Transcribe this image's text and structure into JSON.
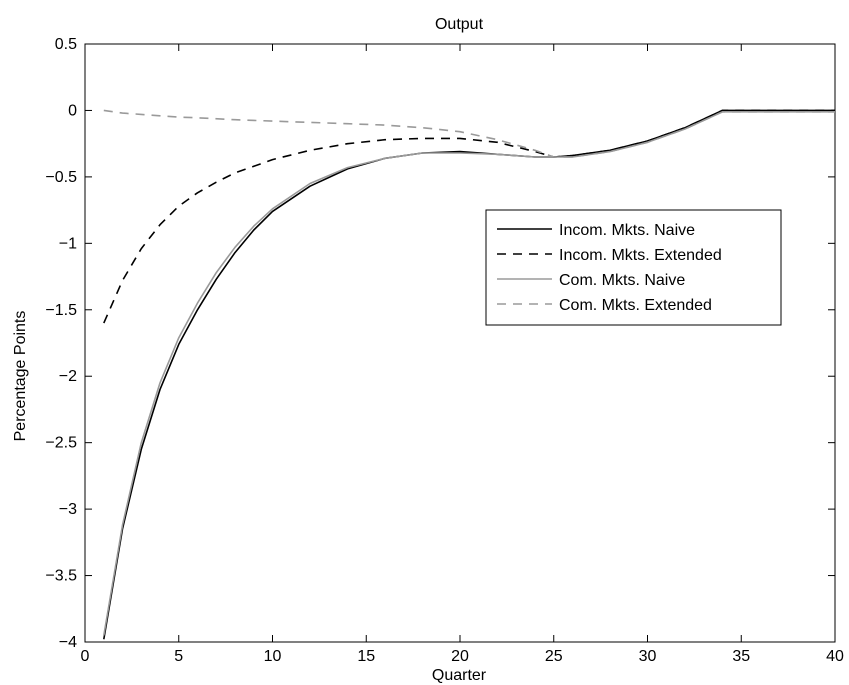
{
  "chart_data": {
    "type": "line",
    "title": "Output",
    "xlabel": "Quarter",
    "ylabel": "Percentage Points",
    "xlim": [
      0,
      40
    ],
    "ylim": [
      -4,
      0.5
    ],
    "xticks": [
      0,
      5,
      10,
      15,
      20,
      25,
      30,
      35,
      40
    ],
    "yticks": [
      0.5,
      0,
      -0.5,
      -1,
      -1.5,
      -2,
      -2.5,
      -3,
      -3.5,
      -4
    ],
    "grid": false,
    "legend_position": "right, upper-middle",
    "series": [
      {
        "name": "Incom. Mkts. Naive",
        "color": "#000000",
        "dash": "solid",
        "x": [
          1,
          2,
          3,
          4,
          5,
          6,
          7,
          8,
          9,
          10,
          12,
          14,
          16,
          18,
          20,
          22,
          24,
          25,
          26,
          28,
          30,
          32,
          34,
          36,
          38,
          40
        ],
        "y": [
          -3.98,
          -3.15,
          -2.55,
          -2.1,
          -1.76,
          -1.5,
          -1.27,
          -1.07,
          -0.9,
          -0.76,
          -0.57,
          -0.44,
          -0.36,
          -0.32,
          -0.31,
          -0.33,
          -0.35,
          -0.35,
          -0.34,
          -0.3,
          -0.23,
          -0.13,
          0.0,
          0.0,
          0.0,
          0.0
        ]
      },
      {
        "name": "Incom. Mkts. Extended",
        "color": "#000000",
        "dash": "dashed",
        "x": [
          1,
          2,
          3,
          4,
          5,
          6,
          7,
          8,
          9,
          10,
          12,
          14,
          16,
          18,
          20,
          22,
          24,
          25,
          26,
          28,
          30,
          32,
          34,
          36,
          38,
          40
        ],
        "y": [
          -1.6,
          -1.28,
          -1.04,
          -0.86,
          -0.72,
          -0.62,
          -0.54,
          -0.47,
          -0.42,
          -0.37,
          -0.3,
          -0.25,
          -0.22,
          -0.21,
          -0.21,
          -0.24,
          -0.31,
          -0.35,
          -0.34,
          -0.3,
          -0.23,
          -0.13,
          0.0,
          0.0,
          0.0,
          0.0
        ]
      },
      {
        "name": "Com. Mkts. Naive",
        "color": "#9a9a9a",
        "dash": "solid",
        "x": [
          1,
          2,
          3,
          4,
          5,
          6,
          7,
          8,
          9,
          10,
          12,
          14,
          16,
          18,
          20,
          22,
          24,
          25,
          26,
          28,
          30,
          32,
          34,
          36,
          38,
          40
        ],
        "y": [
          -3.95,
          -3.12,
          -2.5,
          -2.05,
          -1.71,
          -1.45,
          -1.22,
          -1.03,
          -0.87,
          -0.74,
          -0.55,
          -0.43,
          -0.36,
          -0.32,
          -0.32,
          -0.33,
          -0.35,
          -0.35,
          -0.35,
          -0.31,
          -0.24,
          -0.14,
          -0.01,
          -0.01,
          -0.01,
          -0.01
        ]
      },
      {
        "name": "Com. Mkts. Extended",
        "color": "#9a9a9a",
        "dash": "dashed",
        "x": [
          1,
          2,
          3,
          4,
          5,
          6,
          8,
          10,
          12,
          14,
          16,
          18,
          20,
          22,
          24,
          25,
          26,
          28,
          30,
          32,
          34,
          36,
          38,
          40
        ],
        "y": [
          0.0,
          -0.02,
          -0.03,
          -0.04,
          -0.05,
          -0.055,
          -0.07,
          -0.08,
          -0.09,
          -0.1,
          -0.11,
          -0.13,
          -0.16,
          -0.22,
          -0.3,
          -0.35,
          -0.35,
          -0.31,
          -0.24,
          -0.14,
          -0.01,
          -0.01,
          -0.01,
          -0.01
        ]
      }
    ]
  }
}
